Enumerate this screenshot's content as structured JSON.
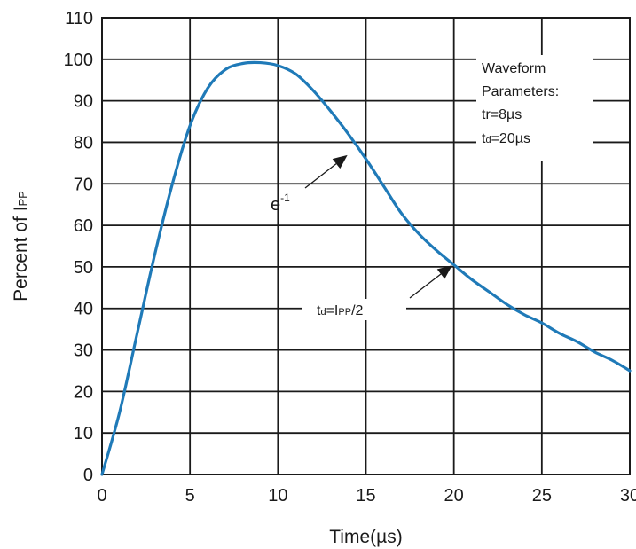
{
  "chart_data": {
    "type": "line",
    "title": "",
    "xlabel": "Time(µs)",
    "ylabel_main": "Percent of I",
    "ylabel_sub": "PP",
    "xlim": [
      0,
      30
    ],
    "ylim": [
      0,
      110
    ],
    "xticks": [
      0,
      5,
      10,
      15,
      20,
      25,
      30
    ],
    "yticks": [
      0,
      10,
      20,
      30,
      40,
      50,
      60,
      70,
      80,
      90,
      100,
      110
    ],
    "grid": true,
    "line_color": "#1f7ab8",
    "series": [
      {
        "name": "Waveform",
        "x": [
          0,
          1,
          2,
          3,
          4,
          5,
          6,
          7,
          8,
          9,
          10,
          11,
          12,
          13,
          14,
          15,
          16,
          17,
          18,
          19,
          20,
          21,
          22,
          23,
          24,
          25,
          26,
          27,
          28,
          29,
          30
        ],
        "y": [
          0,
          15,
          34,
          53,
          70,
          84,
          93,
          97.5,
          99,
          99.2,
          98.5,
          96.5,
          92.5,
          87.5,
          82,
          76,
          69.5,
          63,
          58,
          54,
          50.5,
          47,
          44,
          41,
          38.5,
          36.5,
          34,
          32,
          29.5,
          27.5,
          25
        ]
      }
    ],
    "legend_box": {
      "line1": "Waveform",
      "line2": "Parameters:",
      "line3": "tr=8µs",
      "line4_main": "t",
      "line4_sub": "d",
      "line4_rest": "=20µs"
    },
    "annotations": {
      "e_inverse": {
        "base": "e",
        "exp": "-1",
        "arrow_to": [
          14,
          78
        ]
      },
      "td_label": {
        "main": "t",
        "sub": "d",
        "mid": "=I",
        "sub2": "PP",
        "rest": "/2",
        "arrow_to": [
          20,
          51
        ]
      }
    }
  }
}
